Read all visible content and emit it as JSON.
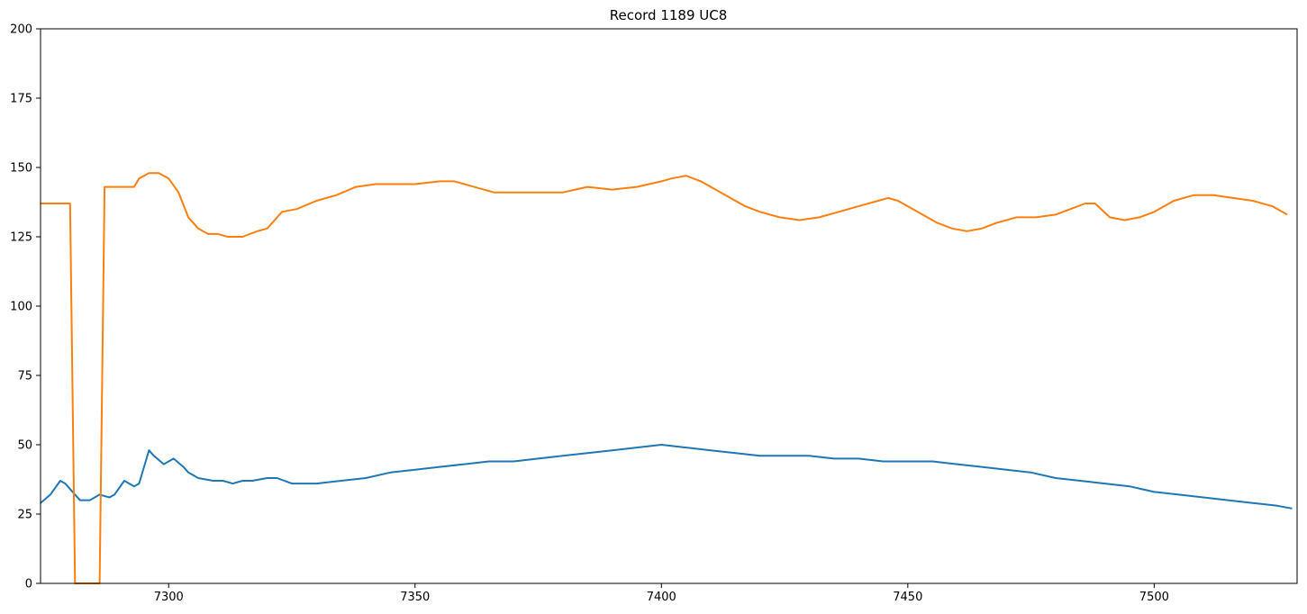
{
  "chart_data": {
    "type": "line",
    "title": "Record 1189 UC8",
    "xlabel": "",
    "ylabel": "",
    "xlim": [
      7274,
      7529
    ],
    "ylim": [
      0,
      200
    ],
    "xticks": [
      7300,
      7350,
      7400,
      7450,
      7500
    ],
    "yticks": [
      0,
      25,
      50,
      75,
      100,
      125,
      150,
      175,
      200
    ],
    "grid": false,
    "legend": "none",
    "series": [
      {
        "color": "#1f77b4",
        "x": [
          7274,
          7276,
          7278,
          7279,
          7281,
          7282,
          7284,
          7286,
          7288,
          7289,
          7291,
          7293,
          7294,
          7296,
          7297,
          7299,
          7301,
          7303,
          7304,
          7306,
          7309,
          7311,
          7313,
          7315,
          7317,
          7320,
          7322,
          7325,
          7330,
          7335,
          7340,
          7345,
          7350,
          7355,
          7360,
          7365,
          7370,
          7375,
          7380,
          7385,
          7390,
          7395,
          7400,
          7405,
          7410,
          7415,
          7420,
          7425,
          7430,
          7435,
          7440,
          7445,
          7450,
          7455,
          7460,
          7465,
          7470,
          7475,
          7480,
          7485,
          7490,
          7495,
          7500,
          7505,
          7510,
          7515,
          7520,
          7525,
          7528
        ],
        "y": [
          29,
          32,
          37,
          36,
          32,
          30,
          30,
          32,
          31,
          32,
          37,
          35,
          36,
          48,
          46,
          43,
          45,
          42,
          40,
          38,
          37,
          37,
          36,
          37,
          37,
          38,
          38,
          36,
          36,
          37,
          38,
          40,
          41,
          42,
          43,
          44,
          44,
          45,
          46,
          47,
          48,
          49,
          50,
          49,
          48,
          47,
          46,
          46,
          46,
          45,
          45,
          44,
          44,
          44,
          43,
          42,
          41,
          40,
          38,
          37,
          36,
          35,
          33,
          32,
          31,
          30,
          29,
          28,
          27
        ]
      },
      {
        "color": "#ff7f0e",
        "x": [
          7274,
          7280,
          7281,
          7286,
          7287,
          7293,
          7294,
          7296,
          7298,
          7300,
          7302,
          7304,
          7306,
          7308,
          7310,
          7312,
          7315,
          7318,
          7320,
          7323,
          7326,
          7330,
          7334,
          7338,
          7342,
          7346,
          7350,
          7355,
          7358,
          7362,
          7366,
          7370,
          7375,
          7380,
          7385,
          7390,
          7395,
          7400,
          7402,
          7405,
          7408,
          7411,
          7414,
          7417,
          7420,
          7424,
          7428,
          7432,
          7436,
          7440,
          7444,
          7446,
          7448,
          7450,
          7453,
          7456,
          7459,
          7462,
          7465,
          7468,
          7472,
          7476,
          7480,
          7483,
          7486,
          7488,
          7491,
          7494,
          7497,
          7500,
          7504,
          7508,
          7512,
          7516,
          7520,
          7524,
          7527
        ],
        "y": [
          137,
          137,
          0,
          0,
          143,
          143,
          146,
          148,
          148,
          146,
          141,
          132,
          128,
          126,
          126,
          125,
          125,
          127,
          128,
          134,
          135,
          138,
          140,
          143,
          144,
          144,
          144,
          145,
          145,
          143,
          141,
          141,
          141,
          141,
          143,
          142,
          143,
          145,
          146,
          147,
          145,
          142,
          139,
          136,
          134,
          132,
          131,
          132,
          134,
          136,
          138,
          139,
          138,
          136,
          133,
          130,
          128,
          127,
          128,
          130,
          132,
          132,
          133,
          135,
          137,
          137,
          132,
          131,
          132,
          134,
          138,
          140,
          140,
          139,
          138,
          136,
          133
        ]
      }
    ]
  }
}
